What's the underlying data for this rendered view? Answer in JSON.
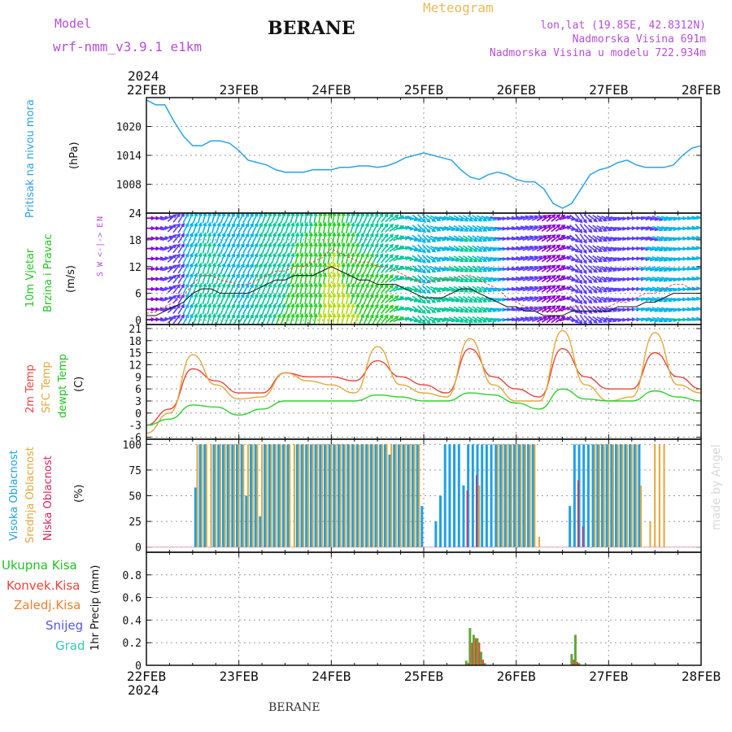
{
  "header": {
    "model_label": "Model",
    "model_name": "wrf-nmm_v3.9.1  e1km",
    "title": "BERANE",
    "meteogram_label": "Meteogram",
    "lonlat": "lon,lat (19.85E, 42.8312N)",
    "elevation": "Nadmorska Visina 691m",
    "model_elevation": "Nadmorska Visina u modelu 722.934m",
    "footer_station": "BERANE",
    "watermark": "made by Angel"
  },
  "colors": {
    "pressure": "#2aa3e6",
    "temp2m": "#e8453c",
    "sfc": "#e0a83a",
    "dew": "#2bd12b",
    "high_cloud": "#1fa0e6",
    "mid_cloud": "#e0a83a",
    "low_cloud": "#d6245a",
    "total_precip": "#5fa83a",
    "conv_precip": "#e8453c",
    "frozen_precip": "#f07f2f",
    "snow": "#5555e0",
    "graupel": "#30c9b8",
    "wind_legend": "#b44fd6"
  },
  "chart_data": [
    {
      "type": "line",
      "panel": "pressure",
      "ylabel_lines": [
        "Pritisak na nivou mora",
        "(hPa)"
      ],
      "x_dates": [
        "22FEB",
        "23FEB",
        "24FEB",
        "25FEB",
        "26FEB",
        "27FEB",
        "28FEB"
      ],
      "top_year": "2024",
      "bottom_year": "2024",
      "y_ticks": [
        1008,
        1014,
        1020
      ],
      "ylim": [
        1002,
        1026
      ],
      "x": [
        0,
        0.1,
        0.2,
        0.3,
        0.4,
        0.5,
        0.6,
        0.7,
        0.8,
        0.9,
        1.0,
        1.1,
        1.2,
        1.3,
        1.4,
        1.5,
        1.6,
        1.7,
        1.8,
        1.9,
        2.0,
        2.1,
        2.2,
        2.3,
        2.4,
        2.5,
        2.6,
        2.7,
        2.8,
        2.9,
        3.0,
        3.1,
        3.2,
        3.3,
        3.4,
        3.5,
        3.6,
        3.7,
        3.8,
        3.9,
        4.0,
        4.1,
        4.2,
        4.3,
        4.4,
        4.5,
        4.6,
        4.7,
        4.8,
        4.9,
        5.0,
        5.1,
        5.2,
        5.3,
        5.4,
        5.5,
        5.6,
        5.7,
        5.8,
        5.9,
        6.0
      ],
      "series": [
        {
          "values": [
            1025.5,
            1024.5,
            1024.5,
            1021,
            1018,
            1016,
            1016,
            1017,
            1017,
            1016.5,
            1015,
            1013,
            1012.5,
            1012,
            1011,
            1010.5,
            1010.5,
            1010.5,
            1011,
            1011,
            1011,
            1011.5,
            1011.5,
            1011.8,
            1011.8,
            1011.5,
            1011.8,
            1012.5,
            1013.5,
            1014,
            1014.5,
            1014,
            1013.5,
            1013,
            1011,
            1009.5,
            1009,
            1010,
            1010.5,
            1010,
            1009,
            1008.5,
            1008.5,
            1007,
            1004,
            1003,
            1004,
            1007,
            1010,
            1011,
            1011.5,
            1012.5,
            1013,
            1012,
            1011.5,
            1011.5,
            1011.5,
            1012,
            1014,
            1015.5,
            1016
          ]
        }
      ]
    },
    {
      "type": "line",
      "panel": "wind",
      "ylabel_lines": [
        "10m Vjetar",
        "Brzina i Pravac",
        "(m/s)"
      ],
      "direction_legend": [
        "N",
        "W  <-|->  E",
        "S"
      ],
      "y_ticks": [
        0,
        6,
        12,
        18,
        24
      ],
      "ylim": [
        -1,
        24
      ],
      "x": [
        0,
        0.1,
        0.2,
        0.3,
        0.4,
        0.5,
        0.6,
        0.7,
        0.8,
        0.9,
        1.0,
        1.1,
        1.2,
        1.3,
        1.4,
        1.5,
        1.6,
        1.7,
        1.8,
        1.9,
        2.0,
        2.1,
        2.2,
        2.3,
        2.4,
        2.5,
        2.6,
        2.7,
        2.8,
        2.9,
        3.0,
        3.1,
        3.2,
        3.3,
        3.4,
        3.5,
        3.6,
        3.7,
        3.8,
        3.9,
        4.0,
        4.1,
        4.2,
        4.3,
        4.4,
        4.5,
        4.6,
        4.7,
        4.8,
        4.9,
        5.0,
        5.1,
        5.2,
        5.3,
        5.4,
        5.5,
        5.6,
        5.7,
        5.8,
        5.9,
        6.0
      ],
      "series": [
        {
          "name": "speed",
          "values": [
            1,
            1,
            2,
            3,
            4,
            6,
            7,
            7,
            6,
            6,
            6,
            6,
            7,
            8,
            9,
            9,
            10,
            10,
            10,
            11,
            12,
            11,
            10,
            9,
            9,
            8,
            8,
            8,
            7,
            6,
            5,
            5,
            5,
            6,
            7,
            7,
            6,
            5,
            4,
            3,
            3,
            2,
            2,
            1,
            1,
            1,
            2,
            2,
            2,
            2,
            2,
            3,
            3,
            3,
            4,
            4,
            5,
            6,
            6,
            6,
            6
          ]
        },
        {
          "name": "gust",
          "values": [
            1.5,
            1.8,
            3,
            4,
            5.5,
            8,
            10,
            10,
            9,
            8.5,
            8,
            8,
            9,
            10,
            11,
            11,
            12,
            12,
            13,
            14,
            16,
            15,
            14,
            13,
            13,
            12,
            12,
            11,
            10,
            9,
            8,
            9,
            9,
            9,
            10,
            10,
            9,
            8,
            7,
            5,
            4,
            3,
            3,
            2,
            2,
            2,
            3,
            3,
            3,
            3,
            3,
            4,
            4,
            5,
            6,
            6,
            7,
            8,
            8,
            7,
            7
          ]
        }
      ],
      "arrow_direction_deg": [
        90,
        90,
        80,
        40,
        30,
        20,
        15,
        15,
        20,
        25,
        30,
        30,
        25,
        20,
        20,
        20,
        15,
        10,
        10,
        10,
        10,
        10,
        15,
        20,
        25,
        30,
        40,
        60,
        90,
        120,
        140,
        120,
        100,
        110,
        120,
        120,
        120,
        110,
        100,
        90,
        80,
        70,
        70,
        60,
        50,
        60,
        120,
        150,
        130,
        120,
        110,
        100,
        90,
        90,
        100,
        110,
        110,
        100,
        90,
        80,
        80
      ]
    },
    {
      "type": "line",
      "panel": "temperature",
      "ylabel_lines": [
        "2m Temp",
        "SFC Temp",
        "dewpt Temp",
        "(C)"
      ],
      "y_ticks": [
        -6,
        -3,
        0,
        3,
        6,
        9,
        12,
        15,
        18,
        21
      ],
      "ylim": [
        -6.5,
        22
      ],
      "x": [
        0,
        0.25,
        0.5,
        0.75,
        1.0,
        1.25,
        1.5,
        1.75,
        2.0,
        2.25,
        2.5,
        2.75,
        3.0,
        3.25,
        3.5,
        3.75,
        4.0,
        4.25,
        4.5,
        4.75,
        5.0,
        5.25,
        5.5,
        5.75,
        6.0
      ],
      "series": [
        {
          "name": "2m Temp",
          "values": [
            -3,
            1,
            11,
            8,
            5,
            5,
            10,
            9,
            9,
            8,
            13,
            9,
            7,
            5,
            16,
            9,
            6,
            4,
            16,
            9,
            6,
            6,
            15,
            9,
            6
          ]
        },
        {
          "name": "SFC Temp",
          "values": [
            -5,
            0,
            14.5,
            7,
            3.5,
            4,
            10,
            8,
            7,
            5,
            16.5,
            7,
            5,
            4,
            18.5,
            7,
            3,
            3,
            20.5,
            7,
            3,
            4,
            20,
            7,
            5
          ]
        },
        {
          "name": "dewpt Temp",
          "values": [
            -3,
            -1.5,
            2,
            1.5,
            -0.5,
            1,
            3,
            3,
            3,
            3,
            4.5,
            4,
            3,
            3,
            5,
            4.5,
            2.5,
            1,
            6,
            3.5,
            3,
            3,
            5.5,
            4,
            3
          ]
        }
      ]
    },
    {
      "type": "bar",
      "panel": "cloud",
      "ylabel_lines": [
        "Visoka Oblacnost",
        "Srednja Oblacnost",
        "Niska Oblacnost",
        "(%)"
      ],
      "y_ticks": [
        0,
        25,
        50,
        75,
        100
      ],
      "ylim": [
        -5,
        105
      ],
      "x": [
        0.55,
        0.6,
        0.65,
        0.7,
        0.75,
        0.8,
        0.85,
        0.9,
        0.95,
        1.0,
        1.05,
        1.1,
        1.15,
        1.2,
        1.25,
        1.3,
        1.35,
        1.4,
        1.45,
        1.5,
        1.55,
        1.6,
        1.65,
        1.7,
        1.75,
        1.8,
        1.85,
        1.9,
        1.95,
        2.0,
        2.05,
        2.1,
        2.15,
        2.2,
        2.25,
        2.3,
        2.35,
        2.4,
        2.45,
        2.5,
        2.55,
        2.6,
        2.65,
        2.7,
        2.75,
        2.8,
        2.85,
        2.9,
        2.95,
        3.0,
        3.1,
        3.15,
        3.2,
        3.25,
        3.3,
        3.35,
        3.4,
        3.45,
        3.5,
        3.55,
        3.6,
        3.65,
        3.7,
        3.75,
        3.8,
        3.85,
        3.9,
        3.95,
        4.0,
        4.05,
        4.1,
        4.15,
        4.2,
        4.25,
        4.6,
        4.65,
        4.7,
        4.75,
        4.8,
        4.85,
        4.9,
        4.95,
        5.0,
        5.05,
        5.1,
        5.15,
        5.2,
        5.25,
        5.3,
        5.35,
        5.45,
        5.5,
        5.55,
        5.6,
        5.65
      ],
      "series": [
        {
          "name": "Visoka Oblacnost",
          "values": [
            58,
            100,
            100,
            0,
            100,
            100,
            100,
            100,
            100,
            100,
            100,
            50,
            100,
            100,
            30,
            100,
            100,
            100,
            100,
            100,
            100,
            0,
            100,
            100,
            100,
            100,
            100,
            100,
            100,
            100,
            100,
            100,
            100,
            100,
            100,
            100,
            100,
            100,
            100,
            100,
            100,
            100,
            90,
            100,
            100,
            100,
            100,
            100,
            100,
            40,
            0,
            25,
            50,
            100,
            100,
            100,
            100,
            60,
            100,
            100,
            100,
            100,
            100,
            100,
            100,
            100,
            100,
            100,
            100,
            100,
            100,
            100,
            100,
            0,
            40,
            100,
            100,
            100,
            100,
            100,
            100,
            100,
            100,
            100,
            100,
            100,
            100,
            100,
            100,
            100,
            0,
            0,
            0,
            0,
            0
          ]
        },
        {
          "name": "Srednja Oblacnost",
          "values": [
            100,
            100,
            100,
            100,
            100,
            100,
            100,
            100,
            100,
            100,
            100,
            100,
            100,
            100,
            100,
            100,
            100,
            100,
            100,
            100,
            100,
            100,
            100,
            100,
            100,
            100,
            100,
            100,
            100,
            100,
            100,
            100,
            100,
            100,
            100,
            100,
            100,
            100,
            100,
            100,
            100,
            100,
            100,
            100,
            100,
            100,
            100,
            100,
            100,
            0,
            0,
            0,
            0,
            0,
            0,
            0,
            0,
            0,
            0,
            0,
            60,
            0,
            0,
            0,
            100,
            100,
            100,
            100,
            100,
            100,
            100,
            100,
            100,
            10,
            0,
            0,
            0,
            0,
            0,
            100,
            100,
            100,
            100,
            100,
            100,
            100,
            100,
            100,
            100,
            60,
            25,
            100,
            100,
            100,
            0
          ]
        },
        {
          "name": "Niska Oblacnost",
          "values": [
            0,
            0,
            0,
            0,
            0,
            0,
            0,
            0,
            0,
            0,
            0,
            0,
            0,
            0,
            0,
            0,
            0,
            0,
            0,
            0,
            0,
            0,
            0,
            0,
            0,
            0,
            0,
            0,
            0,
            0,
            0,
            0,
            0,
            0,
            0,
            0,
            0,
            0,
            0,
            0,
            0,
            0,
            0,
            0,
            0,
            0,
            0,
            0,
            0,
            0,
            0,
            0,
            0,
            0,
            0,
            0,
            0,
            55,
            0,
            70,
            0,
            0,
            0,
            0,
            0,
            0,
            0,
            0,
            0,
            0,
            0,
            0,
            0,
            0,
            0,
            65,
            20,
            0,
            0,
            0,
            0,
            0,
            0,
            0,
            0,
            0,
            0,
            0,
            0,
            0,
            0,
            0,
            0,
            0,
            0
          ]
        }
      ]
    },
    {
      "type": "bar",
      "panel": "precip",
      "ylabel_lines": [
        "1hr Precip (mm)"
      ],
      "legend": [
        "Ukupna Kisa",
        "Konvek.Kisa",
        "Zaledj.Kisa",
        "Snijeg",
        "Grad"
      ],
      "y_ticks": [
        0,
        0.2,
        0.4,
        0.6,
        0.8
      ],
      "ylim": [
        0,
        1.0
      ],
      "x": [
        3.46,
        3.5,
        3.54,
        3.58,
        3.62,
        3.66,
        4.6,
        4.64,
        4.68
      ],
      "series": [
        {
          "name": "Ukupna Kisa",
          "values": [
            0.04,
            0.33,
            0.27,
            0.24,
            0.12,
            0.02,
            0.1,
            0.27,
            0.02
          ]
        },
        {
          "name": "Konvek.Kisa",
          "values": [
            0.02,
            0.2,
            0.24,
            0.2,
            0.05,
            0,
            0.05,
            0.03,
            0
          ]
        }
      ]
    }
  ]
}
